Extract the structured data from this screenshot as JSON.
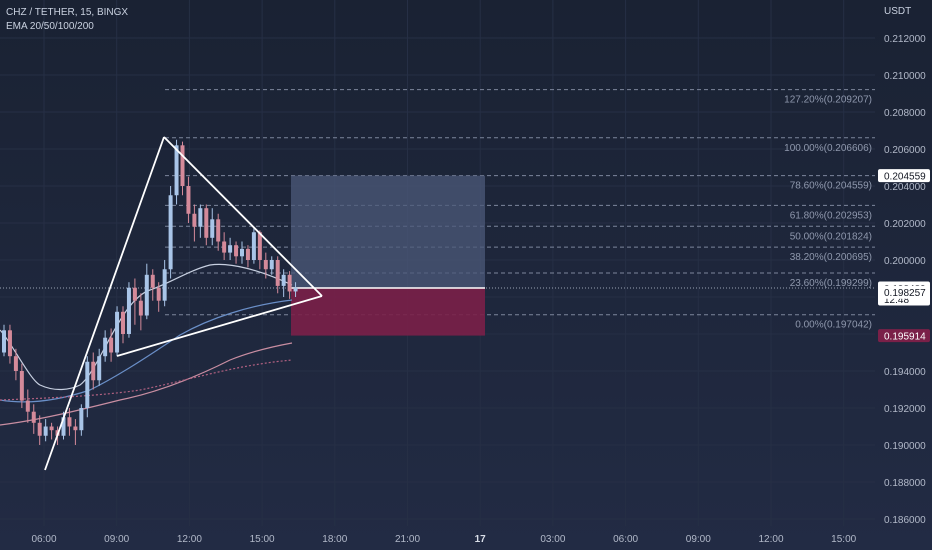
{
  "header": {
    "symbol_line": "CHZ / TETHER, 15, BINGX",
    "indicator_line": "EMA 20/50/100/200",
    "currency": "USDT"
  },
  "price_axis": {
    "ticks": [
      "0.212000",
      "0.210000",
      "0.208000",
      "0.206000",
      "0.204000",
      "0.202000",
      "0.200000",
      "0.198000",
      "0.196000",
      "0.194000",
      "0.192000",
      "0.190000",
      "0.188000",
      "0.186000"
    ]
  },
  "time_axis": {
    "ticks": [
      "06:00",
      "09:00",
      "12:00",
      "15:00",
      "18:00",
      "21:00",
      "17",
      "03:00",
      "06:00",
      "09:00",
      "12:00",
      "15:00"
    ]
  },
  "fib_levels": [
    {
      "label": "127.20%(0.209207)",
      "price": 0.209207
    },
    {
      "label": "100.00%(0.206606)",
      "price": 0.206606
    },
    {
      "label": "78.60%(0.204559)",
      "price": 0.204559
    },
    {
      "label": "61.80%(0.202953)",
      "price": 0.202953
    },
    {
      "label": "50.00%(0.201824)",
      "price": 0.201824
    },
    {
      "label": "38.20%(0.200695)",
      "price": 0.200695
    },
    {
      "label": "23.60%(0.199299)",
      "price": 0.199299
    },
    {
      "label": "0.00%(0.197042)",
      "price": 0.197042
    }
  ],
  "price_badges": {
    "target": {
      "value": "0.204559",
      "price": 0.204559,
      "color": "#ffffff",
      "text_color": "#131722"
    },
    "current": {
      "value": "0.198489",
      "timer": "12:48",
      "price": 0.198489,
      "color": "#ffffff",
      "text_color": "#131722"
    },
    "ema": {
      "value": "0.198257",
      "price": 0.198257,
      "color": "#ffffff",
      "text_color": "#131722"
    },
    "stop": {
      "value": "0.195914",
      "price": 0.195914,
      "color": "#7a2048",
      "text_color": "#ffffff"
    }
  },
  "position_tool": {
    "entry": 0.198489,
    "target": 0.204559,
    "stop": 0.195914,
    "profit_color": "#4c5a7a",
    "loss_color": "#7a2048"
  },
  "colors": {
    "background": "#1c2438",
    "up_candle": "#a9c5e8",
    "down_candle": "#d48a9a",
    "text": "#b2b9c9"
  }
}
